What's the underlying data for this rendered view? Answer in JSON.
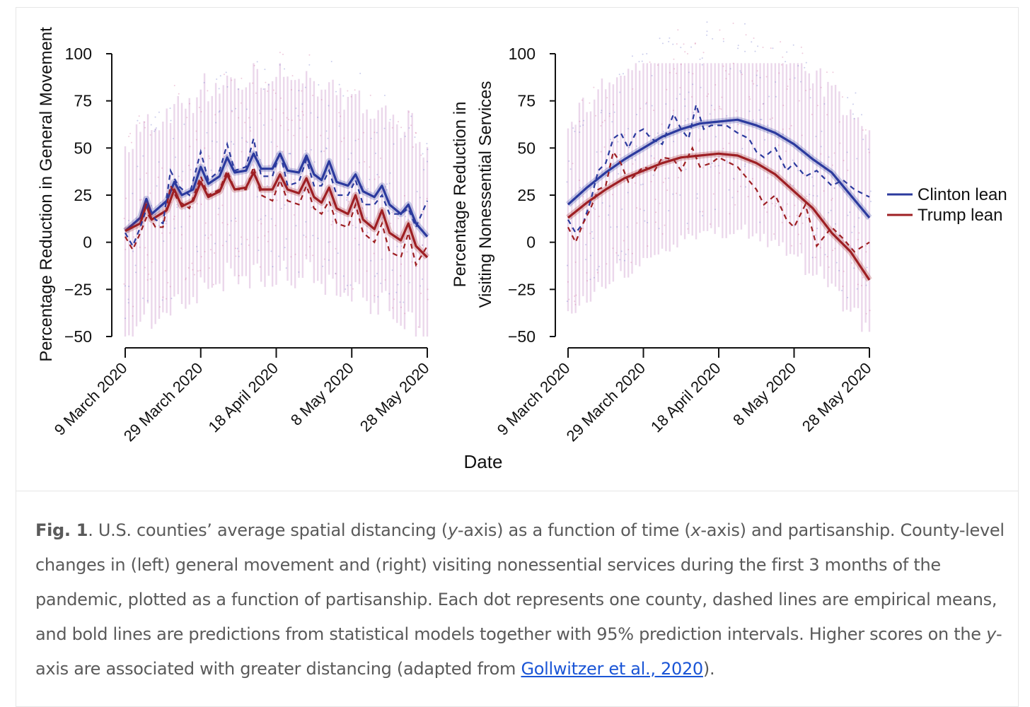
{
  "chart_data": [
    {
      "type": "line",
      "title": "",
      "ylabel": "Percentage Reduction in General Movement",
      "ylabel_lines": [
        "Percentage Reduction in General Movement"
      ],
      "xlabel": "Date",
      "ylim": [
        -50,
        100
      ],
      "yticks": [
        "100",
        "75",
        "50",
        "25",
        "0",
        "−25",
        "−50"
      ],
      "ytick_values": [
        100,
        75,
        50,
        25,
        0,
        -25,
        -50
      ],
      "xlim_days": [
        0,
        80
      ],
      "xticks": [
        "9 March 2020",
        "29 March 2020",
        "18 April 2020",
        "8 May 2020",
        "28 May 2020"
      ],
      "xtick_days": [
        0,
        20,
        40,
        60,
        80
      ],
      "series": [
        {
          "name": "Clinton lean",
          "kind": "model",
          "color": "#2b3a9e",
          "points": [
            [
              0,
              6
            ],
            [
              4,
              13
            ],
            [
              5.6,
              23
            ],
            [
              7,
              15
            ],
            [
              11,
              22
            ],
            [
              13,
              32
            ],
            [
              15,
              25
            ],
            [
              18,
              28
            ],
            [
              20,
              40
            ],
            [
              22,
              31
            ],
            [
              25,
              35
            ],
            [
              27,
              45
            ],
            [
              29,
              37
            ],
            [
              32,
              38
            ],
            [
              34,
              47
            ],
            [
              36,
              39
            ],
            [
              39,
              39
            ],
            [
              41,
              47
            ],
            [
              43,
              38
            ],
            [
              46,
              37
            ],
            [
              48,
              46
            ],
            [
              50,
              36
            ],
            [
              52,
              33
            ],
            [
              54,
              43
            ],
            [
              56,
              32
            ],
            [
              59,
              30
            ],
            [
              61,
              36
            ],
            [
              63,
              27
            ],
            [
              66,
              24
            ],
            [
              68,
              30
            ],
            [
              70,
              20
            ],
            [
              73,
              15
            ],
            [
              75,
              20
            ],
            [
              77,
              10
            ],
            [
              80,
              3
            ]
          ]
        },
        {
          "name": "Trump lean",
          "kind": "model",
          "color": "#9e1f23",
          "points": [
            [
              0,
              6
            ],
            [
              4,
              10
            ],
            [
              5.6,
              20
            ],
            [
              7,
              12
            ],
            [
              11,
              17
            ],
            [
              13,
              28
            ],
            [
              15,
              19
            ],
            [
              18,
              22
            ],
            [
              20,
              32
            ],
            [
              22,
              24
            ],
            [
              25,
              27
            ],
            [
              27,
              36
            ],
            [
              29,
              28
            ],
            [
              32,
              29
            ],
            [
              34,
              37
            ],
            [
              36,
              28
            ],
            [
              39,
              28
            ],
            [
              41,
              36
            ],
            [
              43,
              28
            ],
            [
              46,
              26
            ],
            [
              48,
              34
            ],
            [
              50,
              24
            ],
            [
              52,
              21
            ],
            [
              54,
              29
            ],
            [
              56,
              18
            ],
            [
              59,
              15
            ],
            [
              61,
              25
            ],
            [
              63,
              12
            ],
            [
              66,
              7
            ],
            [
              68,
              17
            ],
            [
              70,
              5
            ],
            [
              73,
              1
            ],
            [
              75,
              10
            ],
            [
              77,
              -2
            ],
            [
              80,
              -8
            ]
          ]
        },
        {
          "name": "Clinton lean",
          "kind": "empirical",
          "color": "#2b3a9e",
          "points": [
            [
              0,
              5
            ],
            [
              2,
              -2
            ],
            [
              4,
              8
            ],
            [
              6,
              20
            ],
            [
              8,
              12
            ],
            [
              10,
              10
            ],
            [
              12,
              38
            ],
            [
              14,
              30
            ],
            [
              17,
              25
            ],
            [
              20,
              48
            ],
            [
              22,
              33
            ],
            [
              25,
              38
            ],
            [
              27,
              52
            ],
            [
              29,
              38
            ],
            [
              32,
              40
            ],
            [
              34,
              55
            ],
            [
              36,
              35
            ],
            [
              39,
              35
            ],
            [
              41,
              48
            ],
            [
              43,
              30
            ],
            [
              46,
              32
            ],
            [
              48,
              44
            ],
            [
              50,
              30
            ],
            [
              52,
              30
            ],
            [
              54,
              38
            ],
            [
              56,
              25
            ],
            [
              59,
              25
            ],
            [
              61,
              33
            ],
            [
              63,
              20
            ],
            [
              66,
              20
            ],
            [
              68,
              25
            ],
            [
              70,
              15
            ],
            [
              73,
              15
            ],
            [
              75,
              18
            ],
            [
              77,
              8
            ],
            [
              80,
              22
            ]
          ]
        },
        {
          "name": "Trump lean",
          "kind": "empirical",
          "color": "#9e1f23",
          "points": [
            [
              0,
              3
            ],
            [
              2,
              -4
            ],
            [
              4,
              5
            ],
            [
              6,
              15
            ],
            [
              8,
              8
            ],
            [
              10,
              8
            ],
            [
              12,
              30
            ],
            [
              14,
              22
            ],
            [
              17,
              18
            ],
            [
              20,
              35
            ],
            [
              22,
              25
            ],
            [
              25,
              28
            ],
            [
              27,
              38
            ],
            [
              29,
              28
            ],
            [
              32,
              28
            ],
            [
              34,
              40
            ],
            [
              36,
              25
            ],
            [
              39,
              22
            ],
            [
              41,
              33
            ],
            [
              43,
              22
            ],
            [
              46,
              20
            ],
            [
              48,
              30
            ],
            [
              50,
              18
            ],
            [
              52,
              15
            ],
            [
              54,
              22
            ],
            [
              56,
              10
            ],
            [
              59,
              8
            ],
            [
              61,
              20
            ],
            [
              63,
              5
            ],
            [
              66,
              0
            ],
            [
              68,
              10
            ],
            [
              70,
              -5
            ],
            [
              73,
              -8
            ],
            [
              75,
              5
            ],
            [
              77,
              -12
            ],
            [
              80,
              -2
            ]
          ]
        }
      ]
    },
    {
      "type": "line",
      "title": "",
      "ylabel": "Percentage Reduction in Visiting Nonessential Services",
      "ylabel_lines": [
        "Percentage Reduction in",
        "Visiting Nonessential Services"
      ],
      "xlabel": "Date",
      "ylim": [
        -50,
        100
      ],
      "yticks": [
        "100",
        "75",
        "50",
        "25",
        "0",
        "−25",
        "−50"
      ],
      "ytick_values": [
        100,
        75,
        50,
        25,
        0,
        -25,
        -50
      ],
      "xlim_days": [
        0,
        80
      ],
      "xticks": [
        "9 March 2020",
        "29 March 2020",
        "18 April 2020",
        "8 May 2020",
        "28 May 2020"
      ],
      "xtick_days": [
        0,
        20,
        40,
        60,
        80
      ],
      "series": [
        {
          "name": "Clinton lean",
          "kind": "model",
          "color": "#2b3a9e",
          "points": [
            [
              0,
              20
            ],
            [
              5,
              29
            ],
            [
              10,
              37
            ],
            [
              15,
              44
            ],
            [
              20,
              50
            ],
            [
              25,
              56
            ],
            [
              30,
              60
            ],
            [
              35,
              63
            ],
            [
              40,
              64
            ],
            [
              45,
              65
            ],
            [
              50,
              62
            ],
            [
              55,
              58
            ],
            [
              60,
              52
            ],
            [
              65,
              44
            ],
            [
              70,
              37
            ],
            [
              75,
              25
            ],
            [
              80,
              13
            ]
          ]
        },
        {
          "name": "Trump lean",
          "kind": "model",
          "color": "#9e1f23",
          "points": [
            [
              0,
              13
            ],
            [
              5,
              21
            ],
            [
              10,
              28
            ],
            [
              15,
              34
            ],
            [
              20,
              38
            ],
            [
              25,
              42
            ],
            [
              30,
              45
            ],
            [
              35,
              46
            ],
            [
              40,
              47
            ],
            [
              45,
              46
            ],
            [
              50,
              42
            ],
            [
              55,
              36
            ],
            [
              60,
              27
            ],
            [
              65,
              18
            ],
            [
              70,
              5
            ],
            [
              75,
              -5
            ],
            [
              80,
              -20
            ]
          ]
        },
        {
          "name": "Clinton lean",
          "kind": "empirical",
          "color": "#2b3a9e",
          "points": [
            [
              0,
              12
            ],
            [
              2,
              5
            ],
            [
              4,
              10
            ],
            [
              6,
              22
            ],
            [
              8,
              38
            ],
            [
              10,
              42
            ],
            [
              12,
              55
            ],
            [
              14,
              58
            ],
            [
              16,
              50
            ],
            [
              18,
              58
            ],
            [
              20,
              60
            ],
            [
              22,
              55
            ],
            [
              25,
              52
            ],
            [
              28,
              68
            ],
            [
              30,
              60
            ],
            [
              32,
              55
            ],
            [
              34,
              73
            ],
            [
              36,
              60
            ],
            [
              38,
              62
            ],
            [
              42,
              62
            ],
            [
              45,
              58
            ],
            [
              48,
              55
            ],
            [
              50,
              48
            ],
            [
              52,
              45
            ],
            [
              55,
              50
            ],
            [
              58,
              38
            ],
            [
              60,
              42
            ],
            [
              63,
              35
            ],
            [
              66,
              38
            ],
            [
              70,
              30
            ],
            [
              73,
              33
            ],
            [
              76,
              28
            ],
            [
              80,
              24
            ]
          ]
        },
        {
          "name": "Trump lean",
          "kind": "empirical",
          "color": "#9e1f23",
          "points": [
            [
              0,
              8
            ],
            [
              2,
              0
            ],
            [
              4,
              10
            ],
            [
              6,
              18
            ],
            [
              8,
              28
            ],
            [
              10,
              30
            ],
            [
              12,
              48
            ],
            [
              14,
              42
            ],
            [
              16,
              32
            ],
            [
              18,
              36
            ],
            [
              20,
              40
            ],
            [
              23,
              38
            ],
            [
              25,
              45
            ],
            [
              28,
              44
            ],
            [
              30,
              38
            ],
            [
              33,
              50
            ],
            [
              35,
              40
            ],
            [
              38,
              42
            ],
            [
              40,
              45
            ],
            [
              45,
              40
            ],
            [
              50,
              28
            ],
            [
              52,
              20
            ],
            [
              55,
              25
            ],
            [
              58,
              12
            ],
            [
              60,
              8
            ],
            [
              63,
              20
            ],
            [
              66,
              -2
            ],
            [
              70,
              8
            ],
            [
              73,
              2
            ],
            [
              76,
              -5
            ],
            [
              80,
              0
            ]
          ]
        }
      ]
    }
  ],
  "legend": {
    "items": [
      {
        "label": "Clinton lean",
        "color": "#2b3a9e"
      },
      {
        "label": "Trump lean",
        "color": "#9e1f23"
      }
    ],
    "placement": "right"
  },
  "shared_xlabel": "Date",
  "caption": {
    "fig_label": "Fig. 1",
    "text_before_y": ". U.S. counties’ average spatial distancing (",
    "y_italic": "y",
    "text_mid1": "-axis) as a function of time (",
    "x_italic": "x",
    "text_mid2": "-axis) and partisanship. County-level changes in (left) general movement and (right) visiting nonessential services during the first 3 months of the pandemic, plotted as a function of partisanship. Each dot represents one county, dashed lines are empirical means, and bold lines are predictions from statistical models together with 95% prediction intervals. Higher scores on the ",
    "y_italic2": "y",
    "text_mid3": "-axis are associated with greater distancing (adapted from ",
    "link": "Gollwitzer et al., 2020",
    "text_end": ")."
  }
}
